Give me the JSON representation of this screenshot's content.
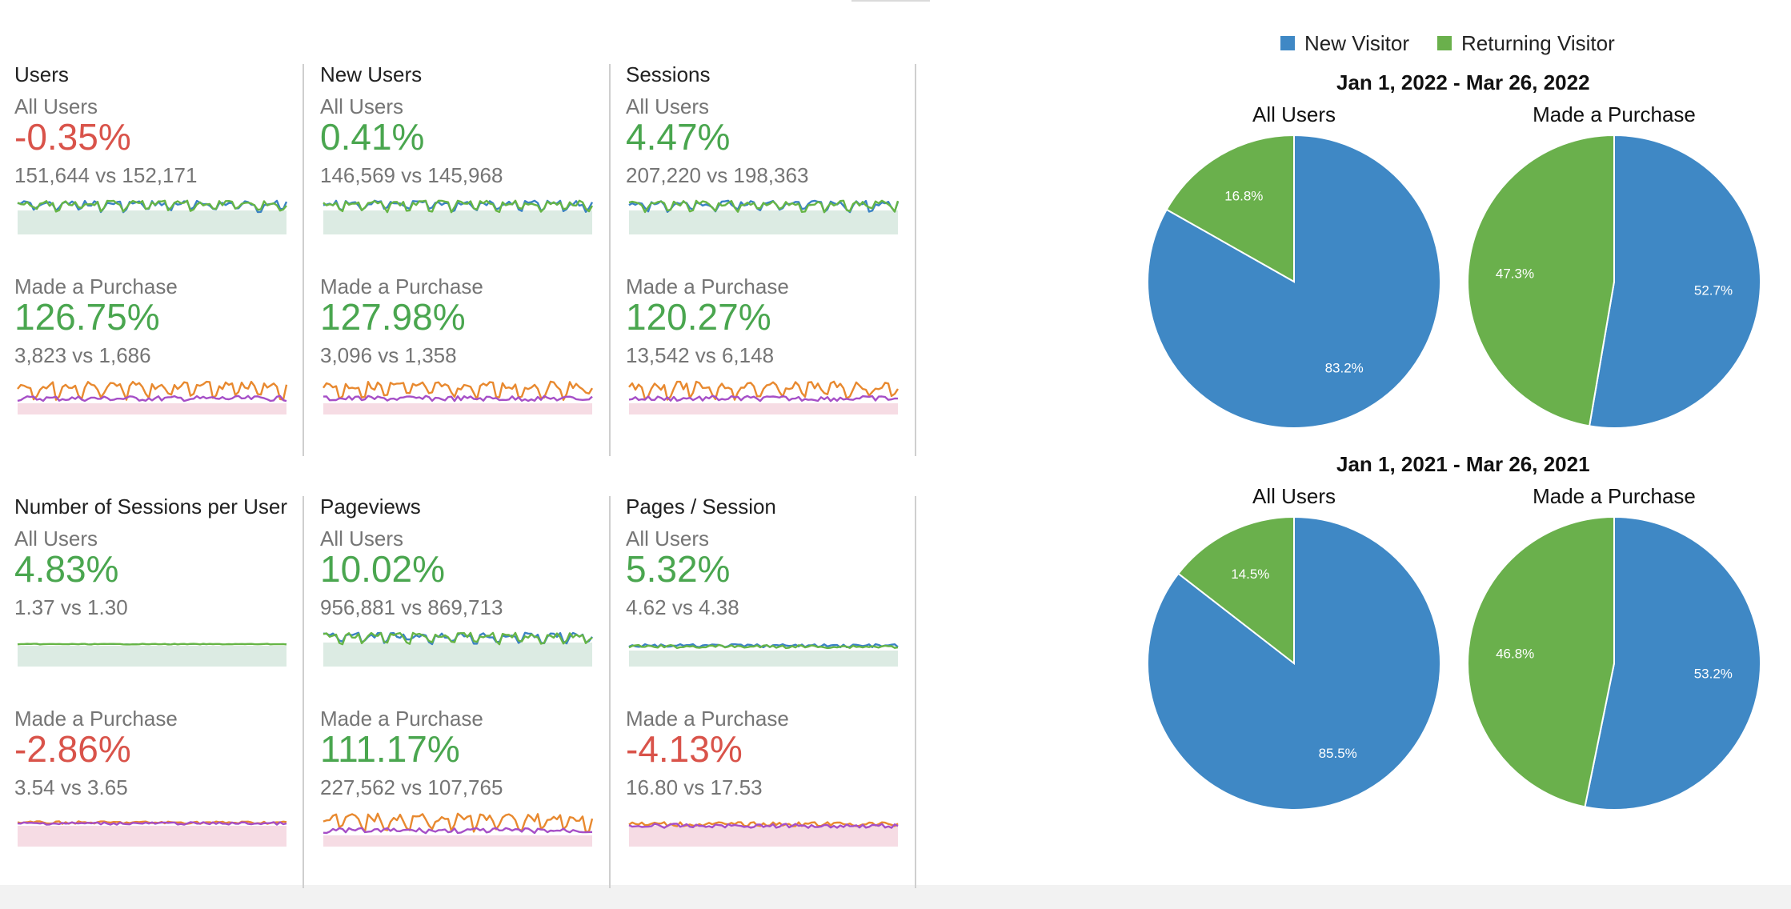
{
  "colors": {
    "new_visitor": "#3f88c5",
    "returning_visitor": "#6ab04c",
    "up": "#4aa64f",
    "down": "#d9534a",
    "all_users_line_a": "#3b82c4",
    "all_users_line_b": "#66b546",
    "all_users_fill": "#dcebe3",
    "purchase_line_a": "#e8892f",
    "purchase_line_b": "#a64fc7",
    "purchase_fill": "#f6dce4"
  },
  "metrics": [
    {
      "title": "Users",
      "segments": [
        {
          "label": "All Users",
          "change": "-0.35%",
          "direction": "down",
          "comparison": "151,644 vs 152,171",
          "spark": "all"
        },
        {
          "label": "Made a Purchase",
          "change": "126.75%",
          "direction": "up",
          "comparison": "3,823 vs 1,686",
          "spark": "purchase"
        }
      ]
    },
    {
      "title": "New Users",
      "segments": [
        {
          "label": "All Users",
          "change": "0.41%",
          "direction": "up",
          "comparison": "146,569 vs 145,968",
          "spark": "all"
        },
        {
          "label": "Made a Purchase",
          "change": "127.98%",
          "direction": "up",
          "comparison": "3,096 vs 1,358",
          "spark": "purchase"
        }
      ]
    },
    {
      "title": "Sessions",
      "segments": [
        {
          "label": "All Users",
          "change": "4.47%",
          "direction": "up",
          "comparison": "207,220 vs 198,363",
          "spark": "all"
        },
        {
          "label": "Made a Purchase",
          "change": "120.27%",
          "direction": "up",
          "comparison": "13,542 vs 6,148",
          "spark": "purchase"
        }
      ]
    },
    {
      "title": "Number of Sessions per User",
      "segments": [
        {
          "label": "All Users",
          "change": "4.83%",
          "direction": "up",
          "comparison": "1.37 vs 1.30",
          "spark": "all-flat"
        },
        {
          "label": "Made a Purchase",
          "change": "-2.86%",
          "direction": "down",
          "comparison": "3.54 vs 3.65",
          "spark": "purchase-flat"
        }
      ]
    },
    {
      "title": "Pageviews",
      "segments": [
        {
          "label": "All Users",
          "change": "10.02%",
          "direction": "up",
          "comparison": "956,881 vs 869,713",
          "spark": "all"
        },
        {
          "label": "Made a Purchase",
          "change": "111.17%",
          "direction": "up",
          "comparison": "227,562 vs 107,765",
          "spark": "purchase"
        }
      ]
    },
    {
      "title": "Pages / Session",
      "segments": [
        {
          "label": "All Users",
          "change": "5.32%",
          "direction": "up",
          "comparison": "4.62 vs 4.38",
          "spark": "all-low"
        },
        {
          "label": "Made a Purchase",
          "change": "-4.13%",
          "direction": "down",
          "comparison": "16.80 vs 17.53",
          "spark": "purchase-low"
        }
      ]
    }
  ],
  "chart_data": [
    {
      "type": "pie",
      "title": "Jan 1, 2022 - Mar 26, 2022",
      "legend": [
        "New Visitor",
        "Returning Visitor"
      ],
      "legend_position": "top",
      "charts": [
        {
          "subtitle": "All Users",
          "slices": [
            {
              "label": "New Visitor",
              "value": 83.2,
              "text": "83.2%"
            },
            {
              "label": "Returning Visitor",
              "value": 16.8,
              "text": "16.8%"
            }
          ]
        },
        {
          "subtitle": "Made a Purchase",
          "slices": [
            {
              "label": "New Visitor",
              "value": 52.7,
              "text": "52.7%"
            },
            {
              "label": "Returning Visitor",
              "value": 47.3,
              "text": "47.3%"
            }
          ]
        }
      ]
    },
    {
      "type": "pie",
      "title": "Jan 1, 2021 - Mar 26, 2021",
      "legend": [
        "New Visitor",
        "Returning Visitor"
      ],
      "legend_position": "top",
      "charts": [
        {
          "subtitle": "All Users",
          "slices": [
            {
              "label": "New Visitor",
              "value": 85.5,
              "text": "85.5%"
            },
            {
              "label": "Returning Visitor",
              "value": 14.5,
              "text": "14.5%"
            }
          ]
        },
        {
          "subtitle": "Made a Purchase",
          "slices": [
            {
              "label": "New Visitor",
              "value": 53.2,
              "text": "53.2%"
            },
            {
              "label": "Returning Visitor",
              "value": 46.8,
              "text": "46.8%"
            }
          ]
        }
      ]
    }
  ],
  "legend": {
    "new_label": "New Visitor",
    "returning_label": "Returning Visitor"
  }
}
